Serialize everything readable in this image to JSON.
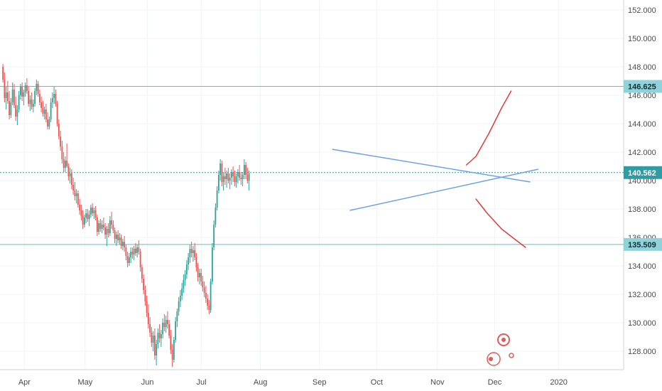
{
  "chart_data": {
    "type": "candlestick",
    "y_axis": {
      "min": 126.7,
      "max": 152.7,
      "ticks": [
        "128.000",
        "130.000",
        "132.000",
        "134.000",
        "136.000",
        "138.000",
        "140.000",
        "142.000",
        "144.000",
        "146.000",
        "148.000",
        "150.000",
        "152.000"
      ],
      "tick_values": [
        128,
        130,
        132,
        134,
        136,
        138,
        140,
        142,
        144,
        146,
        148,
        150,
        152
      ],
      "side": "right"
    },
    "x_axis": {
      "tick_labels": [
        "Apr",
        "May",
        "Jun",
        "Jul",
        "Aug",
        "Sep",
        "Oct",
        "Nov",
        "Dec",
        "2020"
      ],
      "tick_bar_index": [
        14,
        50,
        87,
        119,
        154,
        189,
        223,
        259,
        293,
        331
      ],
      "bar_count_span": [
        0,
        370
      ]
    },
    "horizontal_lines": [
      {
        "value": 146.625,
        "label": "146.625",
        "color": "#5fbfc9",
        "style": "solid"
      },
      {
        "value": 140.562,
        "label": "140.562",
        "color": "#2f9ba3",
        "style": "dotted"
      },
      {
        "value": 135.509,
        "label": "135.509",
        "color": "#5fbfc9",
        "style": "solid"
      }
    ],
    "trendlines": [
      {
        "name": "upper",
        "from": [
          206,
          142.2
        ],
        "to": [
          330,
          139.9
        ],
        "color": "#6fa3e0"
      },
      {
        "name": "lower",
        "from": [
          217,
          137.9
        ],
        "to": [
          335,
          140.8
        ],
        "color": "#6fa3e0"
      }
    ],
    "projection_arrows": [
      {
        "name": "up",
        "points": [
          [
            290,
            141.1
          ],
          [
            296,
            141.7
          ],
          [
            304,
            143.3
          ],
          [
            312,
            145.1
          ],
          [
            318,
            146.3
          ]
        ],
        "color": "#e23b3b"
      },
      {
        "name": "down",
        "points": [
          [
            296,
            138.7
          ],
          [
            303,
            137.7
          ],
          [
            312,
            136.6
          ],
          [
            320,
            135.9
          ],
          [
            327,
            135.3
          ]
        ],
        "color": "#e23b3b"
      }
    ],
    "candles": [
      [
        148.0,
        148.2,
        146.9,
        147.1
      ],
      [
        147.1,
        147.6,
        145.5,
        145.8
      ],
      [
        145.8,
        146.6,
        145.0,
        146.2
      ],
      [
        146.2,
        147.0,
        145.4,
        145.6
      ],
      [
        145.6,
        146.3,
        144.3,
        144.6
      ],
      [
        144.6,
        145.8,
        144.4,
        145.5
      ],
      [
        145.5,
        146.9,
        145.3,
        146.4
      ],
      [
        146.4,
        146.8,
        145.1,
        145.3
      ],
      [
        145.3,
        145.9,
        144.2,
        144.5
      ],
      [
        144.5,
        145.3,
        143.9,
        145.0
      ],
      [
        145.0,
        146.3,
        144.8,
        146.0
      ],
      [
        146.0,
        146.8,
        145.7,
        146.6
      ],
      [
        146.6,
        146.9,
        145.6,
        145.9
      ],
      [
        145.9,
        146.4,
        145.3,
        146.2
      ],
      [
        146.2,
        146.9,
        145.9,
        146.7
      ],
      [
        146.7,
        147.2,
        146.1,
        146.3
      ],
      [
        146.3,
        146.6,
        145.2,
        145.4
      ],
      [
        145.4,
        146.0,
        144.9,
        145.7
      ],
      [
        145.7,
        146.2,
        145.0,
        145.2
      ],
      [
        145.2,
        145.7,
        144.8,
        145.4
      ],
      [
        145.4,
        146.5,
        145.2,
        146.3
      ],
      [
        146.3,
        147.1,
        146.0,
        146.8
      ],
      [
        146.8,
        147.0,
        145.9,
        146.1
      ],
      [
        146.1,
        146.4,
        145.3,
        145.5
      ],
      [
        145.5,
        145.9,
        144.8,
        145.1
      ],
      [
        145.1,
        145.6,
        144.5,
        144.7
      ],
      [
        144.7,
        145.2,
        144.3,
        145.0
      ],
      [
        145.0,
        145.4,
        144.1,
        144.3
      ],
      [
        144.3,
        144.8,
        143.6,
        143.8
      ],
      [
        143.8,
        144.5,
        143.6,
        144.3
      ],
      [
        144.3,
        145.8,
        144.1,
        145.5
      ],
      [
        145.5,
        146.2,
        145.1,
        145.8
      ],
      [
        145.8,
        146.6,
        145.4,
        146.1
      ],
      [
        146.1,
        146.4,
        145.2,
        145.4
      ],
      [
        145.4,
        145.6,
        143.8,
        144.0
      ],
      [
        144.0,
        144.3,
        142.9,
        143.1
      ],
      [
        143.1,
        143.5,
        142.1,
        142.4
      ],
      [
        142.4,
        142.8,
        141.2,
        141.5
      ],
      [
        141.5,
        142.0,
        140.6,
        140.9
      ],
      [
        140.9,
        141.7,
        140.6,
        141.4
      ],
      [
        141.4,
        142.6,
        140.9,
        141.0
      ],
      [
        141.0,
        141.2,
        140.0,
        140.3
      ],
      [
        140.3,
        140.9,
        139.8,
        140.5
      ],
      [
        140.5,
        140.8,
        139.4,
        139.7
      ],
      [
        139.7,
        140.2,
        139.0,
        139.3
      ],
      [
        139.3,
        139.9,
        138.6,
        138.9
      ],
      [
        138.9,
        139.4,
        138.4,
        139.1
      ],
      [
        139.1,
        139.3,
        138.1,
        138.3
      ],
      [
        138.3,
        138.7,
        137.6,
        137.9
      ],
      [
        137.9,
        138.3,
        137.2,
        137.5
      ],
      [
        137.5,
        137.9,
        136.6,
        136.9
      ],
      [
        136.9,
        137.6,
        136.7,
        137.4
      ],
      [
        137.4,
        138.0,
        137.0,
        137.7
      ],
      [
        137.7,
        138.0,
        137.1,
        137.3
      ],
      [
        137.3,
        137.9,
        136.8,
        137.6
      ],
      [
        137.6,
        138.3,
        137.4,
        138.1
      ],
      [
        138.1,
        138.4,
        137.5,
        137.7
      ],
      [
        137.7,
        138.1,
        137.3,
        137.9
      ],
      [
        137.9,
        138.2,
        137.2,
        137.4
      ],
      [
        137.4,
        137.6,
        136.1,
        136.4
      ],
      [
        136.4,
        137.2,
        136.2,
        137.0
      ],
      [
        137.0,
        137.3,
        136.4,
        136.6
      ],
      [
        136.6,
        137.2,
        136.3,
        136.9
      ],
      [
        136.9,
        137.4,
        136.5,
        136.7
      ],
      [
        136.7,
        137.0,
        135.9,
        136.2
      ],
      [
        136.2,
        136.8,
        135.4,
        136.6
      ],
      [
        136.6,
        137.0,
        136.0,
        136.3
      ],
      [
        136.3,
        137.5,
        136.1,
        137.2
      ],
      [
        137.2,
        137.8,
        136.6,
        136.9
      ],
      [
        136.9,
        137.2,
        136.3,
        136.5
      ],
      [
        136.5,
        136.7,
        135.6,
        135.9
      ],
      [
        135.9,
        136.4,
        135.4,
        136.2
      ],
      [
        136.2,
        136.5,
        135.6,
        135.8
      ],
      [
        135.8,
        136.3,
        135.5,
        136.0
      ],
      [
        136.0,
        136.2,
        135.2,
        135.4
      ],
      [
        135.4,
        135.9,
        135.1,
        135.7
      ],
      [
        135.7,
        136.1,
        135.0,
        135.3
      ],
      [
        135.3,
        135.5,
        134.4,
        134.7
      ],
      [
        134.7,
        135.0,
        133.9,
        134.2
      ],
      [
        134.2,
        134.9,
        134.0,
        134.6
      ],
      [
        134.6,
        135.3,
        134.2,
        135.0
      ],
      [
        135.0,
        135.3,
        134.5,
        134.8
      ],
      [
        134.8,
        135.4,
        134.4,
        135.2
      ],
      [
        135.2,
        135.6,
        134.7,
        134.9
      ],
      [
        134.9,
        135.5,
        134.6,
        135.3
      ],
      [
        135.3,
        135.8,
        134.8,
        135.0
      ],
      [
        135.0,
        135.2,
        133.6,
        133.9
      ],
      [
        133.9,
        134.1,
        132.8,
        133.1
      ],
      [
        133.1,
        133.4,
        132.0,
        132.3
      ],
      [
        132.3,
        132.6,
        131.2,
        131.5
      ],
      [
        131.5,
        131.9,
        130.4,
        130.7
      ],
      [
        130.7,
        131.3,
        129.6,
        129.9
      ],
      [
        129.9,
        130.4,
        129.0,
        129.3
      ],
      [
        129.3,
        129.7,
        128.3,
        128.6
      ],
      [
        128.6,
        129.4,
        128.0,
        129.1
      ],
      [
        129.1,
        129.6,
        127.4,
        127.7
      ],
      [
        127.7,
        128.8,
        127.0,
        128.5
      ],
      [
        128.5,
        129.6,
        128.2,
        129.3
      ],
      [
        129.3,
        129.9,
        128.6,
        128.9
      ],
      [
        128.9,
        129.5,
        128.3,
        129.2
      ],
      [
        129.2,
        130.3,
        128.9,
        130.0
      ],
      [
        130.0,
        130.6,
        129.4,
        129.7
      ],
      [
        129.7,
        130.5,
        129.3,
        130.2
      ],
      [
        130.2,
        130.8,
        129.6,
        129.9
      ],
      [
        129.9,
        130.2,
        128.9,
        129.1
      ],
      [
        129.1,
        129.5,
        127.8,
        128.1
      ],
      [
        128.1,
        128.5,
        126.9,
        127.4
      ],
      [
        127.4,
        129.0,
        127.2,
        128.8
      ],
      [
        128.8,
        130.4,
        128.6,
        130.1
      ],
      [
        130.1,
        131.0,
        129.7,
        130.8
      ],
      [
        130.8,
        131.8,
        130.5,
        131.5
      ],
      [
        131.5,
        132.3,
        131.1,
        131.9
      ],
      [
        131.9,
        132.8,
        131.6,
        132.4
      ],
      [
        132.4,
        133.4,
        132.1,
        133.0
      ],
      [
        133.0,
        133.7,
        132.6,
        133.4
      ],
      [
        133.4,
        134.4,
        133.1,
        134.1
      ],
      [
        134.1,
        134.9,
        133.7,
        134.6
      ],
      [
        134.6,
        135.5,
        134.2,
        135.2
      ],
      [
        135.2,
        135.7,
        134.6,
        134.9
      ],
      [
        134.9,
        135.4,
        134.3,
        135.1
      ],
      [
        135.1,
        135.6,
        134.4,
        134.6
      ],
      [
        134.6,
        134.9,
        133.6,
        133.9
      ],
      [
        133.9,
        134.2,
        132.9,
        133.2
      ],
      [
        133.2,
        133.8,
        132.7,
        133.5
      ],
      [
        133.5,
        133.8,
        132.6,
        132.9
      ],
      [
        132.9,
        133.3,
        132.2,
        132.5
      ],
      [
        132.5,
        132.9,
        131.8,
        132.1
      ],
      [
        132.1,
        132.6,
        131.4,
        131.7
      ],
      [
        131.7,
        132.0,
        130.9,
        131.2
      ],
      [
        131.2,
        131.6,
        130.6,
        130.9
      ],
      [
        130.9,
        133.1,
        130.7,
        132.9
      ],
      [
        132.9,
        135.6,
        132.7,
        135.3
      ],
      [
        135.3,
        137.2,
        135.1,
        136.9
      ],
      [
        136.9,
        138.4,
        136.7,
        138.1
      ],
      [
        138.1,
        139.6,
        137.9,
        139.3
      ],
      [
        139.3,
        140.7,
        139.1,
        140.4
      ],
      [
        140.4,
        141.5,
        140.0,
        141.2
      ],
      [
        141.2,
        141.4,
        139.6,
        139.9
      ],
      [
        139.9,
        140.6,
        139.3,
        140.3
      ],
      [
        140.3,
        140.9,
        139.7,
        140.1
      ],
      [
        140.1,
        140.7,
        139.5,
        140.5
      ],
      [
        140.5,
        140.9,
        139.8,
        140.0
      ],
      [
        140.0,
        140.5,
        139.4,
        140.2
      ],
      [
        140.2,
        140.8,
        139.7,
        140.6
      ],
      [
        140.6,
        141.0,
        139.9,
        140.3
      ],
      [
        140.3,
        140.7,
        139.6,
        139.9
      ],
      [
        139.9,
        140.5,
        139.5,
        140.3
      ],
      [
        140.3,
        140.8,
        139.8,
        140.6
      ],
      [
        140.6,
        141.1,
        140.0,
        140.2
      ],
      [
        140.2,
        140.6,
        139.7,
        140.1
      ],
      [
        140.1,
        140.6,
        139.6,
        140.4
      ],
      [
        140.4,
        141.5,
        140.1,
        141.1
      ],
      [
        141.1,
        141.3,
        140.1,
        140.4
      ],
      [
        140.4,
        140.9,
        139.8,
        140.0
      ],
      [
        140.0,
        140.7,
        139.3,
        140.5
      ]
    ]
  }
}
